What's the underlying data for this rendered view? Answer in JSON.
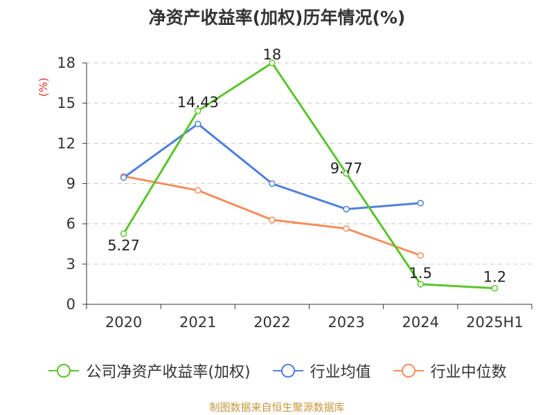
{
  "chart_data": {
    "type": "line",
    "title": "净资产收益率(加权)历年情况(%)",
    "ylabel": "(%)",
    "categories": [
      "2020",
      "2021",
      "2022",
      "2023",
      "2024",
      "2025H1"
    ],
    "yticks": [
      "0",
      "3",
      "6",
      "9",
      "12",
      "15",
      "18"
    ],
    "ylim": [
      0,
      18
    ],
    "grid": true,
    "legend_position": "bottom",
    "series": [
      {
        "name": "公司净资产收益率(加权)",
        "color": "#5ac42a",
        "values": [
          5.27,
          14.43,
          18,
          9.77,
          1.5,
          1.2
        ],
        "labels": [
          "5.27",
          "14.43",
          "18",
          "9.77",
          "1.5",
          "1.2"
        ]
      },
      {
        "name": "行业均值",
        "color": "#4f7fdc",
        "values": [
          9.45,
          13.45,
          9.0,
          7.1,
          7.55,
          null
        ]
      },
      {
        "name": "行业中位数",
        "color": "#f58d5c",
        "values": [
          9.55,
          8.5,
          6.3,
          5.65,
          3.65,
          null
        ]
      }
    ]
  },
  "source": "制图数据来自恒生聚源数据库"
}
